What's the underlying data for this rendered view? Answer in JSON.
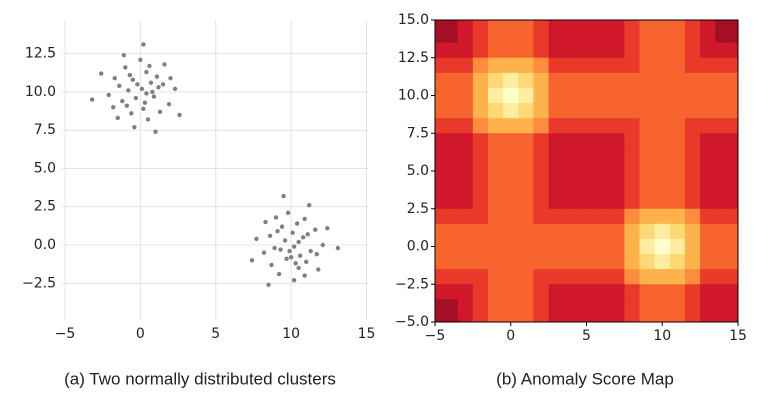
{
  "chart_data": [
    {
      "type": "scatter",
      "caption": "(a) Two normally distributed clusters",
      "color": "#808080",
      "grid": true,
      "xlim": [
        -5.2,
        15.1
      ],
      "ylim": [
        -4.9,
        14.7
      ],
      "xticks": [
        {
          "value": -5,
          "label": "−5"
        },
        0,
        5,
        10,
        15
      ],
      "yticks": [
        {
          "value": -2.5,
          "label": "−2.5"
        },
        {
          "value": 0,
          "label": "0.0"
        },
        {
          "value": 2.5,
          "label": "2.5"
        },
        {
          "value": 5,
          "label": "5.0"
        },
        {
          "value": 7.5,
          "label": "7.5"
        },
        {
          "value": 10,
          "label": "10.0"
        },
        {
          "value": 12.5,
          "label": "12.5"
        }
      ],
      "x": [
        0.1,
        -0.5,
        0.9,
        -1.2,
        0.4,
        1.5,
        -0.8,
        0.2,
        -1.7,
        1.1,
        -0.3,
        0.7,
        -1.0,
        1.9,
        -2.1,
        0.5,
        -0.6,
        1.3,
        -1.4,
        0.0,
        2.3,
        -0.2,
        0.8,
        -0.9,
        0.3,
        -2.6,
        1.6,
        -1.1,
        2.6,
        -0.4,
        0.6,
        -1.5,
        1.0,
        -3.2,
        0.2,
        2.0,
        -0.7,
        1.2,
        -1.8,
        0.4,
        10.2,
        10.8,
        9.7,
        9.4,
        11.3,
        10.5,
        10.1,
        8.9,
        10.9,
        11.0,
        9.6,
        10.6,
        11.6,
        9.2,
        9.8,
        8.2,
        8.6,
        8.7,
        10.4,
        12.1,
        10.2,
        10.5,
        10.0,
        9.1,
        9.3,
        11.2,
        11.8,
        12.4,
        8.5,
        7.7,
        11.7,
        8.3,
        7.4,
        9.5,
        13.1,
        10.9,
        11.1,
        10.3,
        9.0,
        9.9
      ],
      "y": [
        10.2,
        10.8,
        9.7,
        9.4,
        11.3,
        10.5,
        10.1,
        8.9,
        10.9,
        11.0,
        9.6,
        10.6,
        11.6,
        9.2,
        9.8,
        8.2,
        8.6,
        8.7,
        10.4,
        12.1,
        10.2,
        10.5,
        10.0,
        9.1,
        9.3,
        11.2,
        11.8,
        12.4,
        8.5,
        7.7,
        11.7,
        8.3,
        7.4,
        9.5,
        13.1,
        10.9,
        11.1,
        10.3,
        9.0,
        9.9,
        -0.1,
        0.5,
        -0.9,
        1.2,
        -0.4,
        -1.5,
        0.8,
        -0.2,
        1.7,
        -1.1,
        0.3,
        -0.7,
        1.0,
        -1.9,
        2.1,
        -0.5,
        0.6,
        -1.3,
        1.4,
        0.0,
        -2.3,
        0.2,
        -0.8,
        0.9,
        -0.3,
        2.6,
        -1.6,
        1.1,
        -2.6,
        0.4,
        -0.6,
        1.5,
        -1.0,
        3.2,
        -0.2,
        -2.0,
        0.7,
        -1.2,
        1.8,
        -0.4
      ]
    },
    {
      "type": "heatmap",
      "caption": "(b) Anomaly Score Map",
      "xlim": [
        -5,
        15
      ],
      "ylim": [
        -5,
        15
      ],
      "xticks": [
        {
          "value": -5,
          "label": "−5"
        },
        0,
        5,
        10,
        15
      ],
      "yticks": [
        {
          "value": -5,
          "label": "−5.0"
        },
        {
          "value": -2.5,
          "label": "−2.5"
        },
        {
          "value": 0,
          "label": "0.0"
        },
        {
          "value": 2.5,
          "label": "2.5"
        },
        {
          "value": 5,
          "label": "5.0"
        },
        {
          "value": 7.5,
          "label": "7.5"
        },
        {
          "value": 10,
          "label": "10.0"
        },
        {
          "value": 12.5,
          "label": "12.5"
        },
        {
          "value": 15,
          "label": "15.0"
        }
      ],
      "colors": [
        "#ffffcc",
        "#ffeda0",
        "#fed976",
        "#feb24c",
        "#fd8d3c",
        "#f8642e",
        "#e8392a",
        "#d1172a",
        "#a50f26"
      ],
      "x": [
        -5,
        -4,
        -3,
        -2,
        -1,
        0,
        1,
        2,
        3,
        4,
        5,
        6,
        7,
        8,
        9,
        10,
        11,
        12,
        13,
        14,
        15
      ],
      "y": [
        15,
        14,
        13,
        12,
        11,
        10,
        9,
        8,
        7,
        6,
        5,
        4,
        3,
        2,
        1,
        0,
        -1,
        -2,
        -3,
        -4,
        -5
      ],
      "z": [
        [
          9,
          9,
          8,
          7,
          6,
          6,
          6,
          7,
          8,
          8,
          8,
          8,
          8,
          7,
          6,
          6,
          6,
          7,
          8,
          9,
          9
        ],
        [
          9,
          9,
          8,
          7,
          6,
          6,
          6,
          7,
          8,
          8,
          8,
          8,
          8,
          7,
          6,
          6,
          6,
          7,
          8,
          9,
          9
        ],
        [
          8,
          8,
          8,
          7,
          6,
          6,
          6,
          7,
          8,
          8,
          8,
          8,
          8,
          7,
          6,
          6,
          6,
          7,
          8,
          8,
          8
        ],
        [
          7,
          7,
          7,
          5,
          4,
          4,
          4,
          5,
          7,
          7,
          7,
          7,
          7,
          7,
          6,
          6,
          6,
          7,
          7,
          7,
          7
        ],
        [
          6,
          6,
          6,
          4,
          3,
          2,
          3,
          4,
          6,
          6,
          6,
          6,
          6,
          6,
          6,
          6,
          6,
          6,
          6,
          6,
          6
        ],
        [
          6,
          6,
          6,
          4,
          2,
          1,
          2,
          4,
          6,
          6,
          6,
          6,
          6,
          6,
          6,
          6,
          6,
          6,
          6,
          6,
          6
        ],
        [
          6,
          6,
          6,
          4,
          3,
          2,
          3,
          4,
          6,
          6,
          6,
          6,
          6,
          6,
          6,
          6,
          6,
          6,
          6,
          6,
          6
        ],
        [
          7,
          7,
          7,
          5,
          4,
          4,
          4,
          5,
          7,
          7,
          7,
          7,
          7,
          7,
          6,
          6,
          6,
          7,
          7,
          7,
          7
        ],
        [
          8,
          8,
          8,
          7,
          6,
          6,
          6,
          7,
          8,
          8,
          8,
          8,
          8,
          7,
          6,
          6,
          6,
          7,
          8,
          8,
          8
        ],
        [
          8,
          8,
          8,
          7,
          6,
          6,
          6,
          7,
          8,
          8,
          8,
          8,
          8,
          7,
          6,
          6,
          6,
          7,
          8,
          8,
          8
        ],
        [
          8,
          8,
          8,
          7,
          6,
          6,
          6,
          7,
          8,
          8,
          8,
          8,
          8,
          7,
          6,
          6,
          6,
          7,
          8,
          8,
          8
        ],
        [
          8,
          8,
          8,
          7,
          6,
          6,
          6,
          7,
          8,
          8,
          8,
          8,
          8,
          7,
          6,
          6,
          6,
          7,
          8,
          8,
          8
        ],
        [
          8,
          8,
          8,
          7,
          6,
          6,
          6,
          7,
          8,
          8,
          8,
          8,
          8,
          7,
          6,
          6,
          6,
          7,
          8,
          8,
          8
        ],
        [
          7,
          7,
          7,
          7,
          6,
          6,
          6,
          7,
          7,
          7,
          7,
          7,
          7,
          5,
          4,
          4,
          4,
          5,
          7,
          7,
          7
        ],
        [
          6,
          6,
          6,
          6,
          6,
          6,
          6,
          6,
          6,
          6,
          6,
          6,
          6,
          4,
          3,
          2,
          3,
          4,
          6,
          6,
          6
        ],
        [
          6,
          6,
          6,
          6,
          6,
          6,
          6,
          6,
          6,
          6,
          6,
          6,
          6,
          4,
          2,
          1,
          2,
          4,
          6,
          6,
          6
        ],
        [
          6,
          6,
          6,
          6,
          6,
          6,
          6,
          6,
          6,
          6,
          6,
          6,
          6,
          4,
          3,
          2,
          3,
          4,
          6,
          6,
          6
        ],
        [
          7,
          7,
          7,
          7,
          6,
          6,
          6,
          7,
          7,
          7,
          7,
          7,
          7,
          5,
          4,
          4,
          4,
          5,
          7,
          7,
          7
        ],
        [
          8,
          8,
          8,
          7,
          6,
          6,
          6,
          7,
          8,
          8,
          8,
          8,
          8,
          7,
          6,
          6,
          6,
          7,
          8,
          8,
          8
        ],
        [
          9,
          9,
          8,
          7,
          6,
          6,
          6,
          7,
          8,
          8,
          8,
          8,
          8,
          7,
          6,
          6,
          6,
          7,
          8,
          8,
          8
        ],
        [
          9,
          9,
          8,
          7,
          6,
          6,
          6,
          7,
          8,
          8,
          8,
          8,
          8,
          7,
          6,
          6,
          6,
          7,
          8,
          8,
          8
        ]
      ]
    }
  ]
}
